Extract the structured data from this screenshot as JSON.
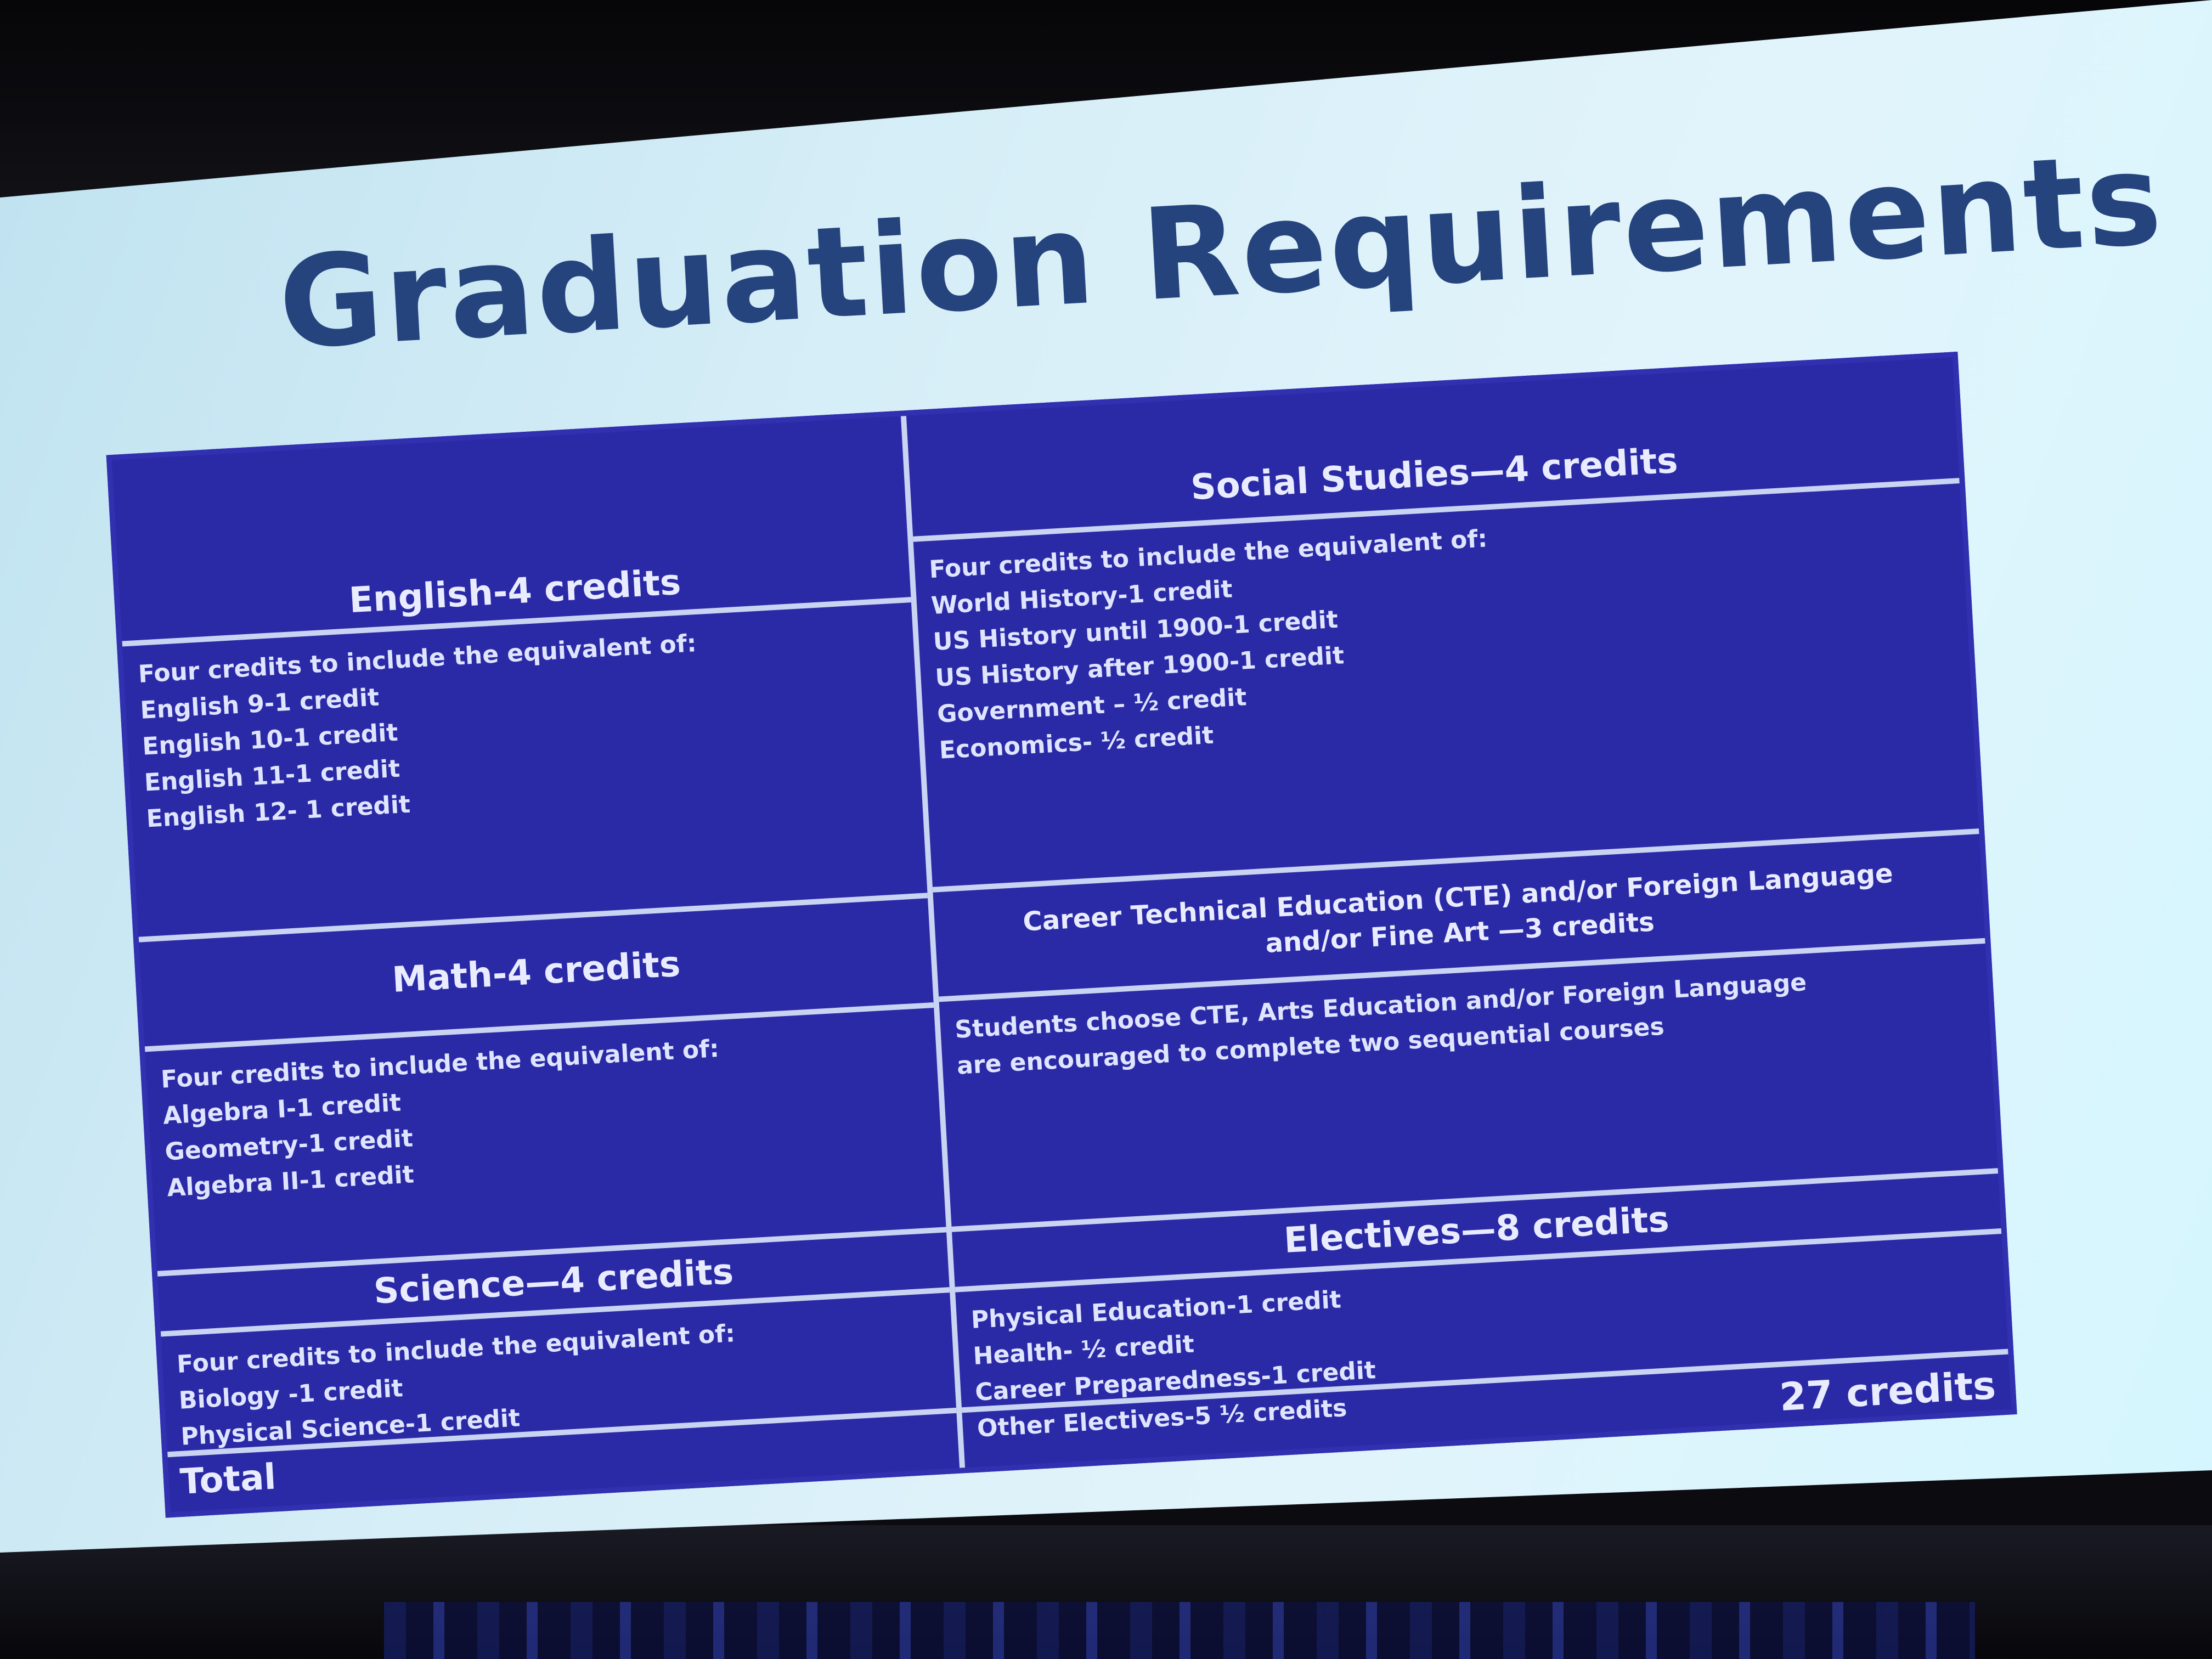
{
  "slide": {
    "title": "Graduation Requirements"
  },
  "english": {
    "header": "English-4 credits",
    "intro": "Four credits to include the equivalent of:",
    "items": [
      "English 9-1 credit",
      "English 10-1 credit",
      "English 11-1 credit",
      "English 12- 1 credit"
    ]
  },
  "math": {
    "header": "Math-4 credits",
    "intro": "Four credits to include the equivalent of:",
    "items": [
      "Algebra I-1 credit",
      "Geometry-1 credit",
      "Algebra II-1 credit"
    ]
  },
  "science": {
    "header": "Science—4 credits",
    "intro": "Four credits to include the equivalent of:",
    "items": [
      "Biology -1 credit",
      "Physical Science-1 credit"
    ]
  },
  "social_studies": {
    "header": "Social Studies—4 credits",
    "intro": "Four credits to include the equivalent of:",
    "items": [
      "World History-1 credit",
      "US History until 1900-1 credit",
      "US History after 1900-1 credit",
      "Government – ½ credit",
      "Economics- ½ credit"
    ]
  },
  "cte": {
    "header_line1": "Career Technical Education (CTE) and/or Foreign Language",
    "header_line2": "and/or Fine Art —3 credits",
    "body_line1": "Students choose CTE, Arts Education and/or Foreign Language",
    "body_line2": "are encouraged to complete two sequential courses"
  },
  "electives": {
    "header": "Electives—8 credits",
    "items": [
      "Physical Education-1 credit",
      "Health- ½ credit",
      "Career Preparedness-1 credit",
      "Other Electives-5 ½ credits"
    ]
  },
  "total": {
    "label": "Total",
    "value": "27 credits"
  },
  "colors": {
    "table_fill": "#2a2aa6",
    "title_text": "#25447e",
    "rule_lines": "#c9d3f2"
  }
}
